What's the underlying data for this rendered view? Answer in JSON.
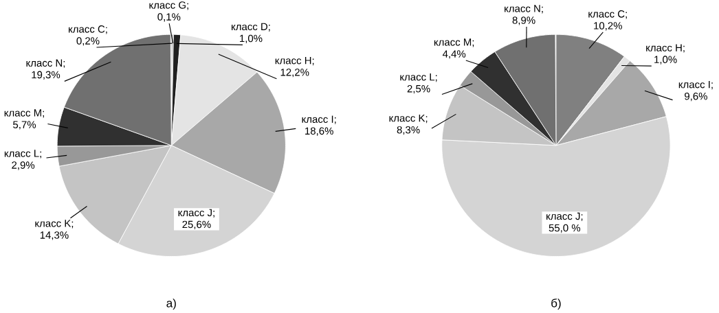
{
  "chart_data": [
    {
      "type": "pie",
      "title": "а)",
      "categories": [
        null,
        null,
        null,
        null,
        null,
        null,
        null,
        null,
        null,
        null
      ],
      "values": [
        0.2,
        0.1,
        1.0,
        12.2,
        18.6,
        25.6,
        14.3,
        2.9,
        5.7,
        19.3
      ],
      "value_labels": [
        "класс C; 0,2%",
        "класс G; 0,1%",
        "класс D; 1,0%",
        "класс H; 12,2%",
        "класс I; 18,6%",
        "класс J; 25,6%",
        "класс K; 14,3%",
        "класс L; 2,9%",
        "класс M; 5,7%",
        "класс N; 19,3%"
      ],
      "colors": [
        "#808080",
        "#404040",
        "#202020",
        "#e4e4e4",
        "#a8a8a8",
        "#d4d4d4",
        "#c4c4c4",
        "#989898",
        "#303030",
        "#707070"
      ]
    },
    {
      "type": "pie",
      "title": "б)",
      "categories": [
        null,
        null,
        null,
        null,
        null,
        null,
        null,
        null
      ],
      "values": [
        10.2,
        1.0,
        9.6,
        55.0,
        8.3,
        2.5,
        4.4,
        8.9
      ],
      "value_labels": [
        "класс C; 10,2%",
        "класс H; 1,0%",
        "класс I; 9,6%",
        "класс J; 55,0 %",
        "класс K; 8,3%",
        "класс L; 2,5%",
        "класс M; 4,4%",
        "класс N; 8,9%"
      ],
      "colors": [
        "#808080",
        "#e4e4e4",
        "#a8a8a8",
        "#d4d4d4",
        "#c4c4c4",
        "#989898",
        "#303030",
        "#707070"
      ]
    }
  ]
}
